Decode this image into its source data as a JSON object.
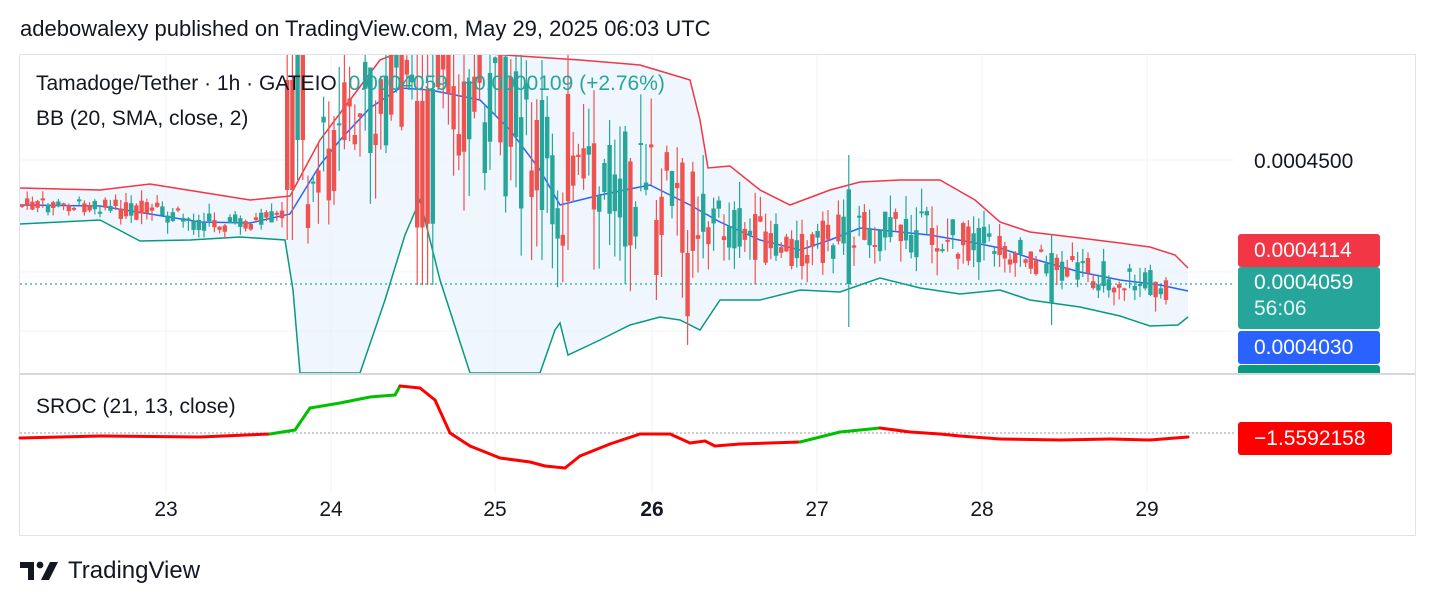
{
  "header": {
    "published": "adebowalexy published on TradingView.com, May 29, 2025 06:03 UTC"
  },
  "legend": {
    "symbol": "Tamadoge/Tether · 1h · GATEIO",
    "last": "0.0004059",
    "change": "+0.0000109 (+2.76%)",
    "bb": "BB (20, SMA, close, 2)",
    "sroc": "SROC (21, 13, close)"
  },
  "price_labels": {
    "upper": "0.0004114",
    "last": "0.0004059",
    "countdown": "56:06",
    "basis": "0.0004030",
    "sroc_value": "−1.5592158",
    "axis_tick": "0.0004500"
  },
  "footer": {
    "brand": "TradingView"
  },
  "colors": {
    "up": "#26a69a",
    "down": "#ef5350",
    "upper_band": "#f23645",
    "basis": "#2962ff",
    "lower_band": "#089981",
    "band_fill": "#e3eefb",
    "sroc_up": "#00c000",
    "sroc_down": "#ff0000"
  },
  "chart_data": {
    "type": "candlestick",
    "x_ticks": [
      "23",
      "24",
      "25",
      "26",
      "27",
      "28",
      "29"
    ],
    "x_tick_bold": "26",
    "y_ticks": [
      "0.0004500"
    ],
    "series": [
      {
        "name": "BB (20, SMA, close, 2)",
        "type": "bands",
        "upper_last": 0.0004114,
        "basis_last": 0.000403
      },
      {
        "name": "Tamadoge/Tether",
        "type": "candlestick",
        "last": 0.0004059
      },
      {
        "name": "SROC (21, 13, close)",
        "type": "line",
        "last": -1.5592158
      }
    ]
  }
}
